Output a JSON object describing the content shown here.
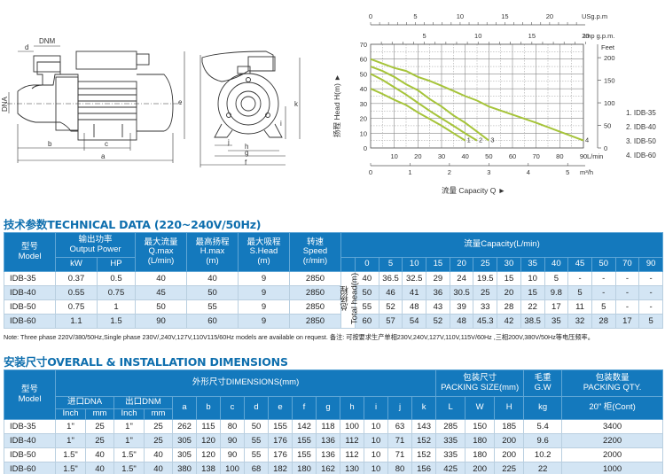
{
  "drawing": {
    "side_view_labels": [
      "d",
      "DNM",
      "DNA",
      "e",
      "b",
      "c",
      "a"
    ],
    "front_view_labels": [
      "k",
      "i",
      "j",
      "h",
      "g",
      "f"
    ]
  },
  "chart_data": {
    "type": "line",
    "title": "",
    "xlabel": "流量 Capacity Q ►",
    "ylabel": "扬程 Head H(m) ►",
    "x_unit_primary": "L/min",
    "x": [
      0,
      5,
      10,
      15,
      20,
      25,
      30,
      35,
      40,
      45,
      50,
      70,
      90
    ],
    "xlim": [
      0,
      90
    ],
    "ylim": [
      0,
      70
    ],
    "x_ticks_lmin": [
      10,
      20,
      30,
      40,
      50,
      60,
      70,
      80,
      90
    ],
    "y_ticks_m": [
      0,
      10,
      20,
      30,
      40,
      50,
      60,
      70
    ],
    "top_axis_usgpm": {
      "label": "USg.p.m",
      "ticks": [
        0,
        5,
        10,
        15,
        20
      ]
    },
    "top_axis_impgpm": {
      "label": "Imp g.p.m.",
      "ticks": [
        5,
        10,
        15,
        20
      ]
    },
    "right_axis_feet": {
      "label": "Feet",
      "ticks": [
        0,
        50,
        100,
        150,
        200
      ]
    },
    "bottom_axis_m3h": {
      "label": "m³/h",
      "ticks": [
        0,
        1,
        2,
        3,
        4,
        5
      ]
    },
    "grid": true,
    "legend_position": "right",
    "series": [
      {
        "name": "1. IDB-35",
        "label": "1",
        "points": [
          [
            0,
            40
          ],
          [
            5,
            36.5
          ],
          [
            10,
            32.5
          ],
          [
            15,
            29
          ],
          [
            20,
            24
          ],
          [
            25,
            19.5
          ],
          [
            30,
            15
          ],
          [
            35,
            10
          ],
          [
            40,
            5
          ]
        ]
      },
      {
        "name": "2. IDB-40",
        "label": "2",
        "points": [
          [
            0,
            50
          ],
          [
            5,
            46
          ],
          [
            10,
            41
          ],
          [
            15,
            36
          ],
          [
            20,
            30.5
          ],
          [
            25,
            25
          ],
          [
            30,
            20
          ],
          [
            35,
            15
          ],
          [
            40,
            9.8
          ],
          [
            45,
            5
          ]
        ]
      },
      {
        "name": "3. IDB-50",
        "label": "3",
        "points": [
          [
            0,
            55
          ],
          [
            5,
            52
          ],
          [
            10,
            48
          ],
          [
            15,
            43
          ],
          [
            20,
            39
          ],
          [
            25,
            33
          ],
          [
            30,
            28
          ],
          [
            35,
            22
          ],
          [
            40,
            17
          ],
          [
            45,
            11
          ],
          [
            50,
            5
          ]
        ]
      },
      {
        "name": "4. IDB-60",
        "label": "4",
        "points": [
          [
            0,
            60
          ],
          [
            5,
            57
          ],
          [
            10,
            54
          ],
          [
            15,
            52
          ],
          [
            20,
            48
          ],
          [
            25,
            45.3
          ],
          [
            30,
            42
          ],
          [
            35,
            38.5
          ],
          [
            40,
            35
          ],
          [
            45,
            32
          ],
          [
            50,
            28
          ],
          [
            70,
            17
          ],
          [
            90,
            5
          ]
        ]
      }
    ],
    "curve_color": "#a6c43a"
  },
  "tech": {
    "title": "技术参数TECHNICAL DATA (220~240V/50Hz)",
    "headers": {
      "model_cn": "型号",
      "model_en": "Model",
      "power_cn": "输出功率",
      "power_en": "Output Power",
      "kw": "kW",
      "hp": "HP",
      "qmax_cn": "最大流量",
      "qmax_en": "Q.max",
      "qmax_unit": "(L/min)",
      "hmax_cn": "最高扬程",
      "hmax_en": "H.max",
      "hmax_unit": "(m)",
      "shead_cn": "最大吸程",
      "shead_en": "S.Head",
      "shead_unit": "(m)",
      "speed_cn": "转速",
      "speed_en": "Speed",
      "speed_unit": "(r/min)",
      "capacity": "流量Capacity(L/min)",
      "capacity_cols": [
        "0",
        "5",
        "10",
        "15",
        "20",
        "25",
        "30",
        "35",
        "40",
        "45",
        "50",
        "70",
        "90"
      ],
      "total_head_cn": "总扬程",
      "total_head_en": "Total head(m)"
    },
    "rows": [
      {
        "model": "IDB-35",
        "kw": "0.37",
        "hp": "0.5",
        "qmax": "40",
        "hmax": "40",
        "shead": "9",
        "speed": "2850",
        "heads": [
          "40",
          "36.5",
          "32.5",
          "29",
          "24",
          "19.5",
          "15",
          "10",
          "5",
          "-",
          "-",
          "-",
          "-"
        ]
      },
      {
        "model": "IDB-40",
        "kw": "0.55",
        "hp": "0.75",
        "qmax": "45",
        "hmax": "50",
        "shead": "9",
        "speed": "2850",
        "heads": [
          "50",
          "46",
          "41",
          "36",
          "30.5",
          "25",
          "20",
          "15",
          "9.8",
          "5",
          "-",
          "-",
          "-"
        ]
      },
      {
        "model": "IDB-50",
        "kw": "0.75",
        "hp": "1",
        "qmax": "50",
        "hmax": "55",
        "shead": "9",
        "speed": "2850",
        "heads": [
          "55",
          "52",
          "48",
          "43",
          "39",
          "33",
          "28",
          "22",
          "17",
          "11",
          "5",
          "-",
          "-"
        ]
      },
      {
        "model": "IDB-60",
        "kw": "1.1",
        "hp": "1.5",
        "qmax": "90",
        "hmax": "60",
        "shead": "9",
        "speed": "2850",
        "heads": [
          "60",
          "57",
          "54",
          "52",
          "48",
          "45.3",
          "42",
          "38.5",
          "35",
          "32",
          "28",
          "17",
          "5"
        ]
      }
    ],
    "note": "Note: Three phase 220V/380/50Hz,Single phase 230V/,240V,127V,110V115/60Hz models are available on request. 备注: 可按要求生产单相230V,240V,127V,110V,115V/60Hz ,三相200V,380V/50Hz等电压频率。"
  },
  "dims": {
    "title": "安装尺寸OVERALL & INSTALLATION DIMENSIONS",
    "headers": {
      "model_cn": "型号",
      "model_en": "Model",
      "dimensions": "外形尺寸DIMENSIONS(mm)",
      "dna": "进口DNA",
      "dnm": "出口DNM",
      "inch": "Inch",
      "mm": "mm",
      "letters": [
        "a",
        "b",
        "c",
        "d",
        "e",
        "f",
        "g",
        "h",
        "i",
        "j",
        "k"
      ],
      "packing_cn": "包装尺寸",
      "packing_en": "PACKING SIZE(mm)",
      "packing_cols": [
        "L",
        "W",
        "H"
      ],
      "gw_cn": "毛重",
      "gw_en": "G.W",
      "gw_unit": "kg",
      "qty_cn": "包装数量",
      "qty_en": "PACKING QTY.",
      "qty_unit": "20\" 柜(Cont)"
    },
    "rows": [
      {
        "model": "IDB-35",
        "dna_inch": "1\"",
        "dna_mm": "25",
        "dnm_inch": "1\"",
        "dnm_mm": "25",
        "dims": [
          "262",
          "115",
          "80",
          "50",
          "155",
          "142",
          "118",
          "100",
          "10",
          "63",
          "143"
        ],
        "pack": [
          "285",
          "150",
          "185"
        ],
        "gw": "5.4",
        "qty": "3400"
      },
      {
        "model": "IDB-40",
        "dna_inch": "1\"",
        "dna_mm": "25",
        "dnm_inch": "1\"",
        "dnm_mm": "25",
        "dims": [
          "305",
          "120",
          "90",
          "55",
          "176",
          "155",
          "136",
          "112",
          "10",
          "71",
          "152"
        ],
        "pack": [
          "335",
          "180",
          "200"
        ],
        "gw": "9.6",
        "qty": "2200"
      },
      {
        "model": "IDB-50",
        "dna_inch": "1.5\"",
        "dna_mm": "40",
        "dnm_inch": "1.5\"",
        "dnm_mm": "40",
        "dims": [
          "305",
          "120",
          "90",
          "55",
          "176",
          "155",
          "136",
          "112",
          "10",
          "71",
          "152"
        ],
        "pack": [
          "335",
          "180",
          "200"
        ],
        "gw": "10.2",
        "qty": "2000"
      },
      {
        "model": "IDB-60",
        "dna_inch": "1.5\"",
        "dna_mm": "40",
        "dnm_inch": "1.5\"",
        "dnm_mm": "40",
        "dims": [
          "380",
          "138",
          "100",
          "68",
          "182",
          "180",
          "162",
          "130",
          "10",
          "80",
          "156"
        ],
        "pack": [
          "425",
          "200",
          "225"
        ],
        "gw": "22",
        "qty": "1000"
      }
    ]
  }
}
